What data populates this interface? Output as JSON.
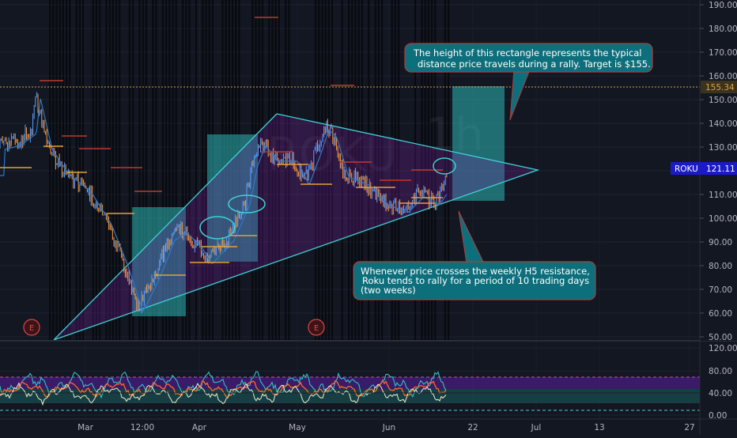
{
  "symbol": {
    "label": "ROKU",
    "last_price": "121.11",
    "reference_price": "155.34",
    "watermark_timeframe": "1h",
    "watermark_name": "ROKU"
  },
  "price_axis": {
    "ticks": [
      "190.00",
      "180.00",
      "170.00",
      "160.00",
      "150.00",
      "140.00",
      "130.00",
      "120.00",
      "110.00",
      "100.00",
      "90.00",
      "80.00",
      "70.00",
      "60.00",
      "50.00"
    ]
  },
  "indicator_axis": {
    "ticks": [
      "120.00",
      "80.00",
      "40.00",
      "0.00"
    ]
  },
  "time_axis": {
    "ticks": [
      "Mar",
      "12:00",
      "Apr",
      "May",
      "Jun",
      "22",
      "Jul",
      "13",
      "27"
    ]
  },
  "events": [
    {
      "label": "E"
    },
    {
      "label": "E"
    }
  ],
  "annotations": {
    "target_note": "The height of this rectangle represents the typical\ndistance price travels during a rally. Target is $155.",
    "rally_note": "Whenever price crosses the weekly H5 resistance,\nRoku tends to rally for a period of 10 trading days\n(two weeks)"
  },
  "colors": {
    "background": "#131722",
    "grid": "#1f2330",
    "axis_text": "#b2b5be",
    "teal": "#2bb5b5",
    "triangle_fill": "#7a1fa2",
    "triangle_line": "#3fd1d1",
    "callout_fill": "#0e6f7c",
    "callout_border": "#b03c3c",
    "event_red": "#e04545",
    "price_badge_bg": "#1a1ac8",
    "ref_badge_bg": "#3a3320",
    "ref_line": "#e0a33a",
    "candle_up": "#5aa0ff",
    "candle_down": "#ff9a3c",
    "band_purple": "#5a1fa0",
    "band_teal": "#1a5e5e"
  }
}
